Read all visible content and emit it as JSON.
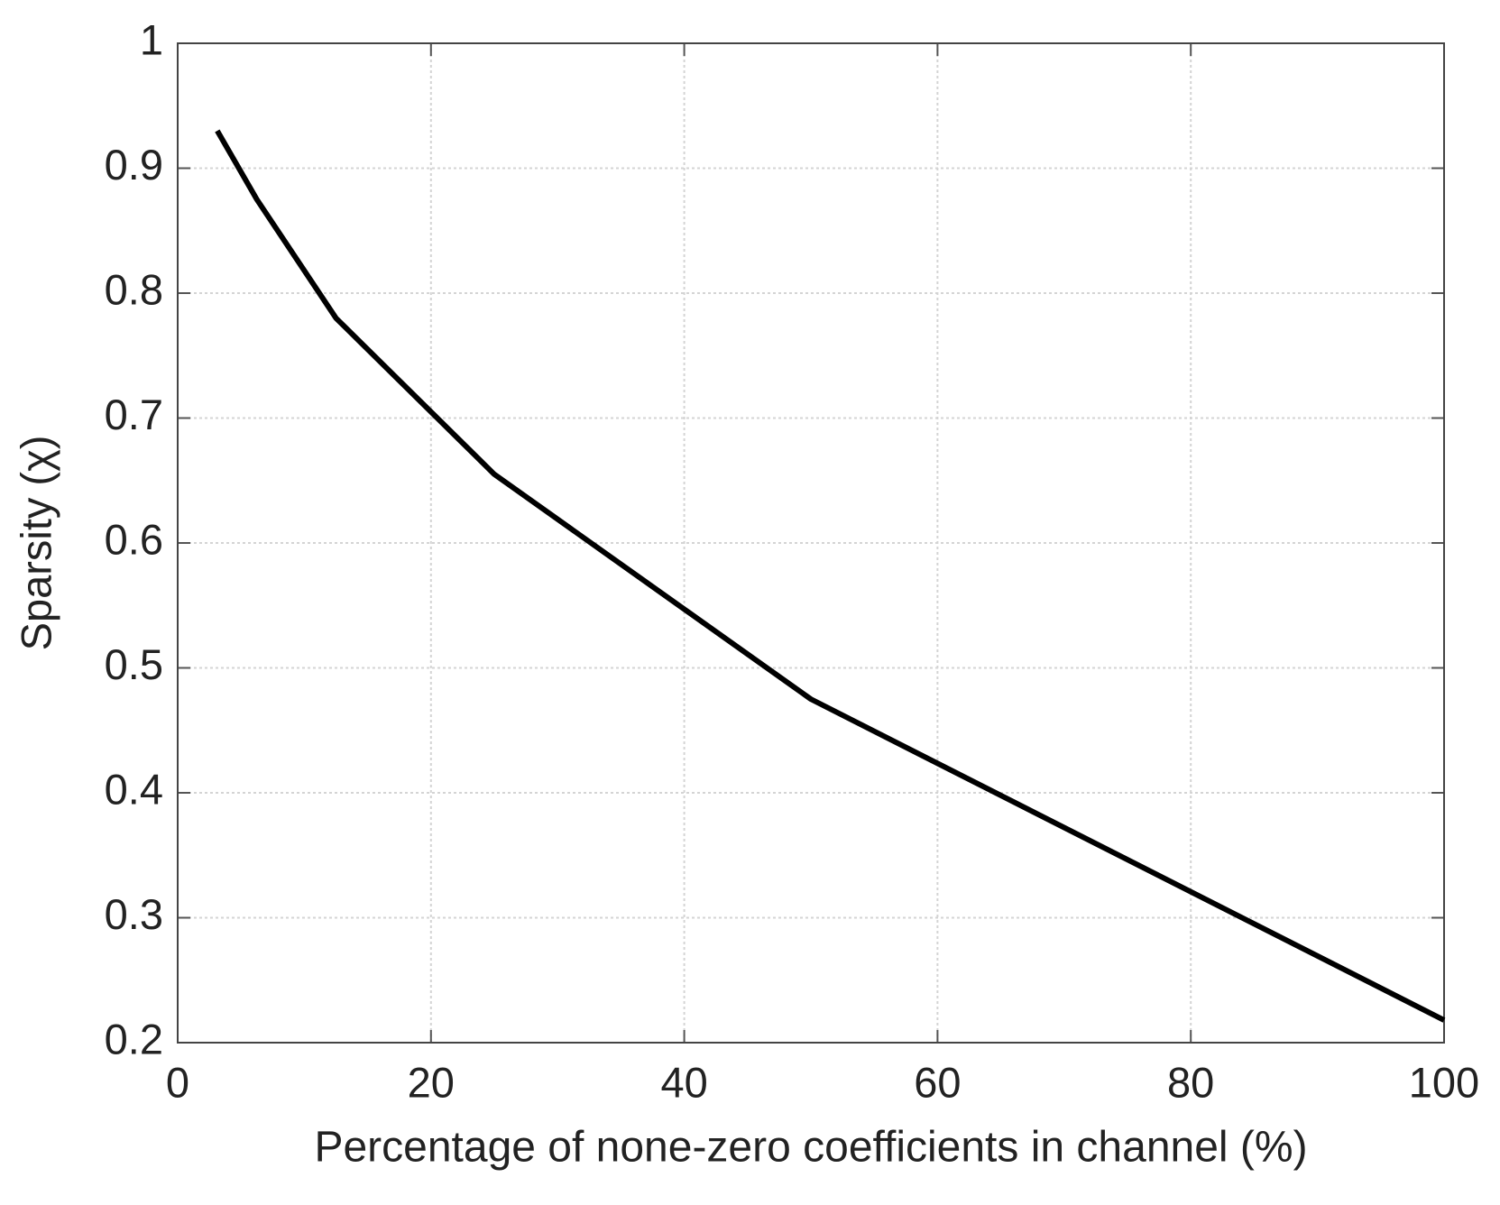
{
  "chart_data": {
    "type": "line",
    "x_label": "Percentage of none-zero coefficients in channel (%)",
    "y_label": "Sparsity (χ)",
    "x": [
      3.125,
      6.25,
      12.5,
      25,
      50,
      100
    ],
    "series": [
      {
        "name": "Sparsity",
        "color": "#000000",
        "values": [
          0.93,
          0.875,
          0.78,
          0.655,
          0.475,
          0.218
        ]
      }
    ],
    "xlim": [
      0,
      100
    ],
    "xticks": [
      0,
      20,
      40,
      60,
      80,
      100
    ],
    "ylim": [
      0.2,
      1
    ],
    "yticks": [
      0.2,
      0.3,
      0.4,
      0.5,
      0.6,
      0.7,
      0.8,
      0.9,
      1
    ],
    "grid": true
  }
}
